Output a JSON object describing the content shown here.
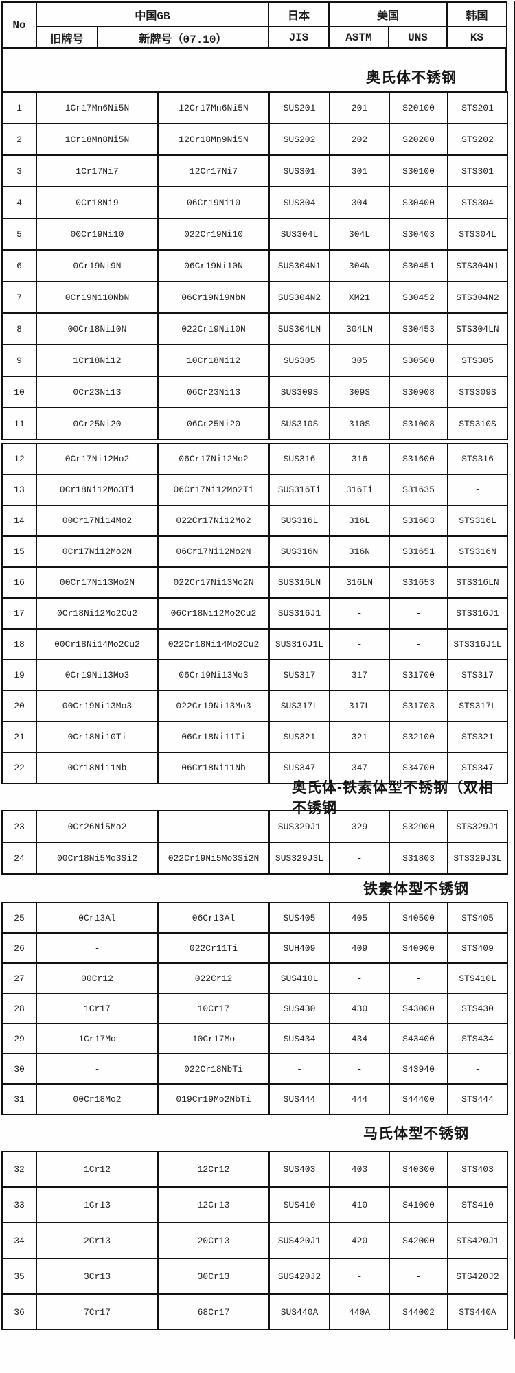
{
  "table": {
    "header": {
      "no": "No",
      "china_group": "中国GB",
      "old_grade": "旧牌号",
      "new_grade": "新牌号（07.10）",
      "japan_group": "日本",
      "jis": "JIS",
      "usa_group": "美国",
      "astm": "ASTM",
      "uns": "UNS",
      "korea_group": "韩国",
      "ks": "KS"
    },
    "sections": [
      {
        "title": "奥氏体不锈钢",
        "blocks": [
          [
            [
              "1",
              "1Cr17Mn6Ni5N",
              "12Cr17Mn6Ni5N",
              "SUS201",
              "201",
              "S20100",
              "STS201"
            ],
            [
              "2",
              "1Cr18Mn8Ni5N",
              "12Cr18Mn9Ni5N",
              "SUS202",
              "202",
              "S20200",
              "STS202"
            ],
            [
              "3",
              "1Cr17Ni7",
              "12Cr17Ni7",
              "SUS301",
              "301",
              "S30100",
              "STS301"
            ],
            [
              "4",
              "0Cr18Ni9",
              "06Cr19Ni10",
              "SUS304",
              "304",
              "S30400",
              "STS304"
            ],
            [
              "5",
              "00Cr19Ni10",
              "022Cr19Ni10",
              "SUS304L",
              "304L",
              "S30403",
              "STS304L"
            ],
            [
              "6",
              "0Cr19Ni9N",
              "06Cr19Ni10N",
              "SUS304N1",
              "304N",
              "S30451",
              "STS304N1"
            ],
            [
              "7",
              "0Cr19Ni10NbN",
              "06Cr19Ni9NbN",
              "SUS304N2",
              "XM21",
              "S30452",
              "STS304N2"
            ],
            [
              "8",
              "00Cr18Ni10N",
              "022Cr19Ni10N",
              "SUS304LN",
              "304LN",
              "S30453",
              "STS304LN"
            ],
            [
              "9",
              "1Cr18Ni12",
              "10Cr18Ni12",
              "SUS305",
              "305",
              "S30500",
              "STS305"
            ],
            [
              "10",
              "0Cr23Ni13",
              "06Cr23Ni13",
              "SUS309S",
              "309S",
              "S30908",
              "STS309S"
            ],
            [
              "11",
              "0Cr25Ni20",
              "06Cr25Ni20",
              "SUS310S",
              "310S",
              "S31008",
              "STS310S"
            ]
          ],
          [
            [
              "12",
              "0Cr17Ni12Mo2",
              "06Cr17Ni12Mo2",
              "SUS316",
              "316",
              "S31600",
              "STS316"
            ],
            [
              "13",
              "0Cr18Ni12Mo3Ti",
              "06Cr17Ni12Mo2Ti",
              "SUS316Ti",
              "316Ti",
              "S31635",
              "-"
            ],
            [
              "14",
              "00Cr17Ni14Mo2",
              "022Cr17Ni12Mo2",
              "SUS316L",
              "316L",
              "S31603",
              "STS316L"
            ],
            [
              "15",
              "0Cr17Ni12Mo2N",
              "06Cr17Ni12Mo2N",
              "SUS316N",
              "316N",
              "S31651",
              "STS316N"
            ],
            [
              "16",
              "00Cr17Ni13Mo2N",
              "022Cr17Ni13Mo2N",
              "SUS316LN",
              "316LN",
              "S31653",
              "STS316LN"
            ],
            [
              "17",
              "0Cr18Ni12Mo2Cu2",
              "06Cr18Ni12Mo2Cu2",
              "SUS316J1",
              "-",
              "-",
              "STS316J1"
            ],
            [
              "18",
              "00Cr18Ni14Mo2Cu2",
              "022Cr18Ni14Mo2Cu2",
              "SUS316J1L",
              "-",
              "-",
              "STS316J1L"
            ],
            [
              "19",
              "0Cr19Ni13Mo3",
              "06Cr19Ni13Mo3",
              "SUS317",
              "317",
              "S31700",
              "STS317"
            ],
            [
              "20",
              "00Cr19Ni13Mo3",
              "022Cr19Ni13Mo3",
              "SUS317L",
              "317L",
              "S31703",
              "STS317L"
            ],
            [
              "21",
              "0Cr18Ni10Ti",
              "06Cr18Ni11Ti",
              "SUS321",
              "321",
              "S32100",
              "STS321"
            ],
            [
              "22",
              "0Cr18Ni11Nb",
              "06Cr18Ni11Nb",
              "SUS347",
              "347",
              "S34700",
              "STS347"
            ]
          ]
        ]
      },
      {
        "title": "奥氏体-铁素体型不锈钢（双相不锈钢",
        "blocks": [
          [
            [
              "23",
              "0Cr26Ni5Mo2",
              "-",
              "SUS329J1",
              "329",
              "S32900",
              "STS329J1"
            ],
            [
              "24",
              "00Cr18Ni5Mo3Si2",
              "022Cr19Ni5Mo3Si2N",
              "SUS329J3L",
              "-",
              "S31803",
              "STS329J3L"
            ]
          ]
        ]
      },
      {
        "title": "铁素体型不锈钢",
        "blocks": [
          [
            [
              "25",
              "0Cr13Al",
              "06Cr13Al",
              "SUS405",
              "405",
              "S40500",
              "STS405"
            ],
            [
              "26",
              "-",
              "022Cr11Ti",
              "SUH409",
              "409",
              "S40900",
              "STS409"
            ],
            [
              "27",
              "00Cr12",
              "022Cr12",
              "SUS410L",
              "-",
              "-",
              "STS410L"
            ],
            [
              "28",
              "1Cr17",
              "10Cr17",
              "SUS430",
              "430",
              "S43000",
              "STS430"
            ],
            [
              "29",
              "1Cr17Mo",
              "10Cr17Mo",
              "SUS434",
              "434",
              "S43400",
              "STS434"
            ],
            [
              "30",
              "-",
              "022Cr18NbTi",
              "-",
              "-",
              "S43940",
              "-"
            ],
            [
              "31",
              "00Cr18Mo2",
              "019Cr19Mo2NbTi",
              "SUS444",
              "444",
              "S44400",
              "STS444"
            ]
          ]
        ]
      },
      {
        "title": "马氏体型不锈钢",
        "blocks": [
          [
            [
              "32",
              "1Cr12",
              "12Cr12",
              "SUS403",
              "403",
              "S40300",
              "STS403"
            ],
            [
              "33",
              "1Cr13",
              "12Cr13",
              "SUS410",
              "410",
              "S41000",
              "STS410"
            ],
            [
              "34",
              "2Cr13",
              "20Cr13",
              "SUS420J1",
              "420",
              "S42000",
              "STS420J1"
            ],
            [
              "35",
              "3Cr13",
              "30Cr13",
              "SUS420J2",
              "-",
              "-",
              "STS420J2"
            ],
            [
              "36",
              "7Cr17",
              "68Cr17",
              "SUS440A",
              "440A",
              "S44002",
              "STS440A"
            ]
          ]
        ]
      }
    ]
  }
}
